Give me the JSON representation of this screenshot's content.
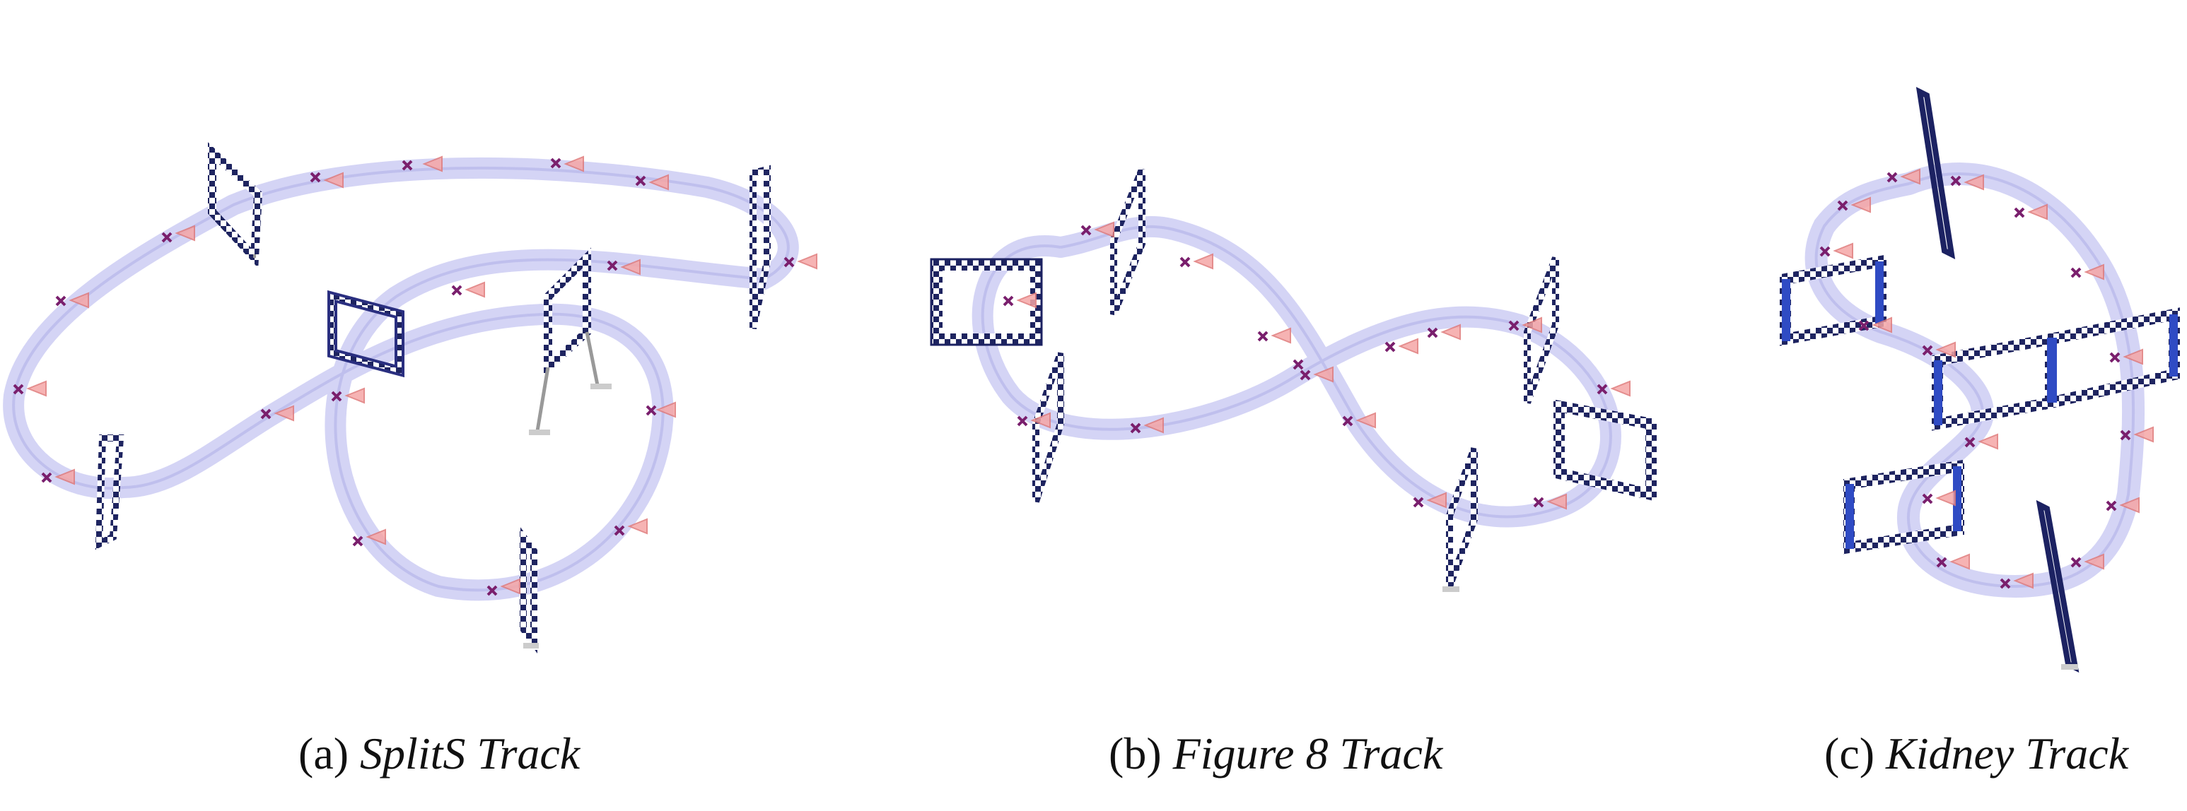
{
  "panels": [
    {
      "label": "(a)",
      "title": "SplitS Track",
      "track_color": "#c9c9f2",
      "gate_color": "#2f3a9e",
      "drone_color": "#7a1f6d",
      "thrust_color": "#f08c8c"
    },
    {
      "label": "(b)",
      "title": "Figure 8 Track",
      "track_color": "#c9c9f2",
      "gate_color": "#2f3a9e",
      "drone_color": "#7a1f6d",
      "thrust_color": "#f08c8c"
    },
    {
      "label": "(c)",
      "title": "Kidney Track",
      "track_color": "#c9c9f2",
      "gate_color": "#2f3a9e",
      "drone_color": "#7a1f6d",
      "thrust_color": "#f08c8c"
    }
  ]
}
